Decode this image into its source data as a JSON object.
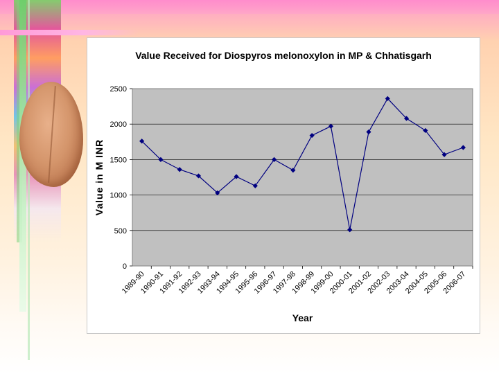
{
  "chart_data": {
    "type": "line",
    "title": "Value Received for Diospyros melonoxylon in MP & Chhatisgarh",
    "xlabel": "Year",
    "ylabel": "Value in M INR",
    "ylim": [
      0,
      2500
    ],
    "yticks": [
      "0",
      "500",
      "1000",
      "1500",
      "2000",
      "2500"
    ],
    "grid": true,
    "legend": "none",
    "categories": [
      "1989-90",
      "1990-91",
      "1991-92",
      "1992-93",
      "1993-94",
      "1994-95",
      "1995-96",
      "1996-97",
      "1997-98",
      "1998-99",
      "1999-00",
      "2000-01",
      "2001-02",
      "2002-03",
      "2003-04",
      "2004-05",
      "2005-06",
      "2006-07"
    ],
    "series": [
      {
        "values": [
          1760,
          1500,
          1360,
          1270,
          1030,
          1260,
          1130,
          1500,
          1350,
          1840,
          1970,
          510,
          1890,
          2360,
          2080,
          1910,
          1570,
          1670
        ],
        "color": "#000080"
      }
    ],
    "plot_bg": "#c0c0c0"
  }
}
